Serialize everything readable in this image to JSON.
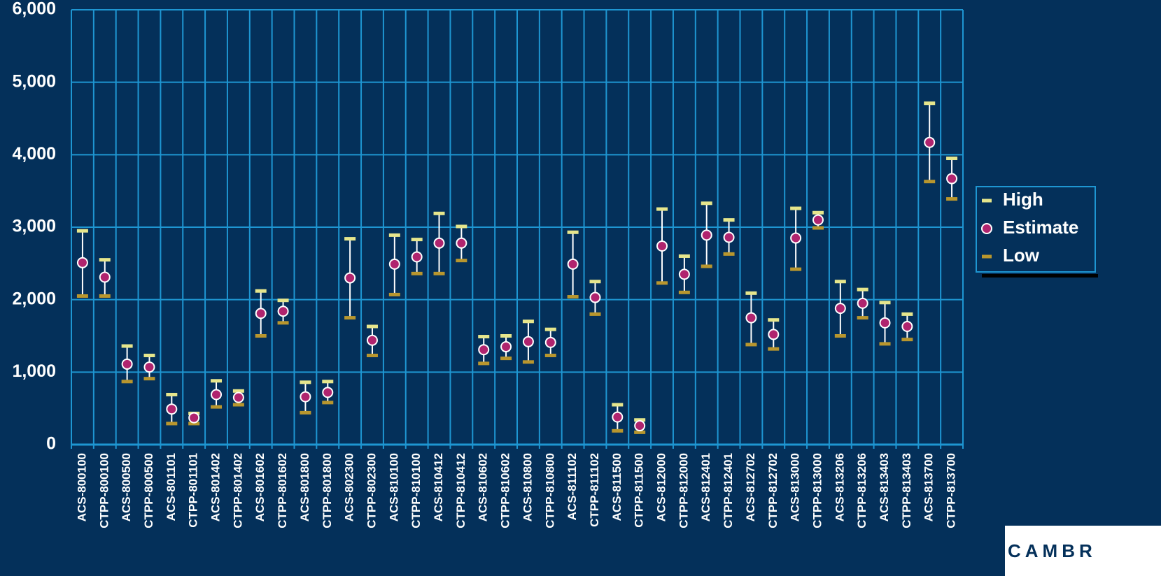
{
  "chart_data": {
    "type": "hilo",
    "categories": [
      "ACS-800100",
      "CTPP-800100",
      "ACS-800500",
      "CTPP-800500",
      "ACS-801101",
      "CTPP-801101",
      "ACS-801402",
      "CTPP-801402",
      "ACS-801602",
      "CTPP-801602",
      "ACS-801800",
      "CTPP-801800",
      "ACS-802300",
      "CTPP-802300",
      "ACS-810100",
      "CTPP-810100",
      "ACS-810412",
      "CTPP-810412",
      "ACS-810602",
      "CTPP-810602",
      "ACS-810800",
      "CTPP-810800",
      "ACS-811102",
      "CTPP-811102",
      "ACS-811500",
      "CTPP-811500",
      "ACS-812000",
      "CTPP-812000",
      "ACS-812401",
      "CTPP-812401",
      "ACS-812702",
      "CTPP-812702",
      "ACS-813000",
      "CTPP-813000",
      "ACS-813206",
      "CTPP-813206",
      "ACS-813403",
      "CTPP-813403",
      "ACS-813700",
      "CTPP-813700"
    ],
    "series": [
      {
        "name": "High",
        "color": "#e6e68c",
        "values": [
          2950,
          2550,
          1360,
          1230,
          690,
          430,
          880,
          740,
          2120,
          1990,
          860,
          870,
          2840,
          1630,
          2890,
          2830,
          3190,
          3010,
          1490,
          1500,
          1700,
          1590,
          2930,
          2250,
          550,
          340,
          3250,
          2600,
          3330,
          3100,
          2090,
          1720,
          3260,
          3200,
          2250,
          2140,
          1960,
          1800,
          4710,
          3950
        ]
      },
      {
        "name": "Estimate",
        "color": "#b0246e",
        "values": [
          2510,
          2310,
          1110,
          1070,
          490,
          370,
          690,
          650,
          1810,
          1840,
          660,
          720,
          2300,
          1440,
          2490,
          2590,
          2780,
          2780,
          1310,
          1350,
          1420,
          1410,
          2490,
          2030,
          380,
          260,
          2740,
          2350,
          2890,
          2860,
          1750,
          1520,
          2850,
          3100,
          1880,
          1950,
          1680,
          1630,
          4170,
          3670
        ]
      },
      {
        "name": "Low",
        "color": "#b8962e",
        "values": [
          2050,
          2050,
          870,
          910,
          290,
          290,
          520,
          550,
          1500,
          1680,
          440,
          580,
          1750,
          1230,
          2070,
          2360,
          2360,
          2540,
          1120,
          1190,
          1140,
          1230,
          2040,
          1800,
          190,
          170,
          2230,
          2100,
          2460,
          2630,
          1380,
          1320,
          2420,
          2990,
          1500,
          1750,
          1390,
          1450,
          3630,
          3390
        ]
      }
    ],
    "ylim": [
      0,
      6000
    ],
    "yticks": [
      0,
      {
        "value": 1000,
        "label": "1,000"
      },
      {
        "value": 2000,
        "label": "2,000"
      },
      {
        "value": 3000,
        "label": "3,000"
      },
      {
        "value": 4000,
        "label": "4,000"
      },
      {
        "value": 5000,
        "label": "5,000"
      },
      {
        "value": 6000,
        "label": "6,000"
      }
    ],
    "grid": true,
    "legend": "right"
  },
  "logo": "CAMBR"
}
